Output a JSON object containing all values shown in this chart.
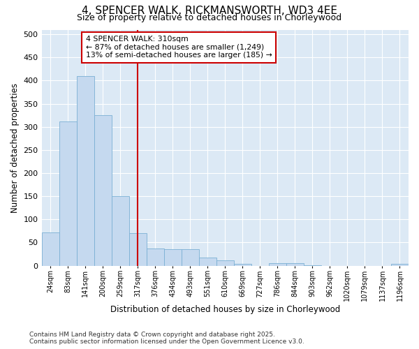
{
  "title": "4, SPENCER WALK, RICKMANSWORTH, WD3 4EE",
  "subtitle": "Size of property relative to detached houses in Chorleywood",
  "xlabel": "Distribution of detached houses by size in Chorleywood",
  "ylabel": "Number of detached properties",
  "categories": [
    "24sqm",
    "83sqm",
    "141sqm",
    "200sqm",
    "259sqm",
    "317sqm",
    "376sqm",
    "434sqm",
    "493sqm",
    "551sqm",
    "610sqm",
    "669sqm",
    "727sqm",
    "786sqm",
    "844sqm",
    "903sqm",
    "962sqm",
    "1020sqm",
    "1079sqm",
    "1137sqm",
    "1196sqm"
  ],
  "values": [
    72,
    312,
    410,
    325,
    150,
    70,
    37,
    36,
    35,
    18,
    12,
    4,
    0,
    6,
    6,
    1,
    0,
    0,
    0,
    0,
    4
  ],
  "bar_color": "#c5d9ef",
  "bar_edge_color": "#7aafd4",
  "bg_color": "#dce9f5",
  "grid_color": "#ffffff",
  "vline_color": "#cc0000",
  "vline_x": 5,
  "annotation_text": "4 SPENCER WALK: 310sqm\n← 87% of detached houses are smaller (1,249)\n13% of semi-detached houses are larger (185) →",
  "annotation_box_color": "#cc0000",
  "footer_text": "Contains HM Land Registry data © Crown copyright and database right 2025.\nContains public sector information licensed under the Open Government Licence v3.0.",
  "ylim": [
    0,
    510
  ],
  "yticks": [
    0,
    50,
    100,
    150,
    200,
    250,
    300,
    350,
    400,
    450,
    500
  ]
}
